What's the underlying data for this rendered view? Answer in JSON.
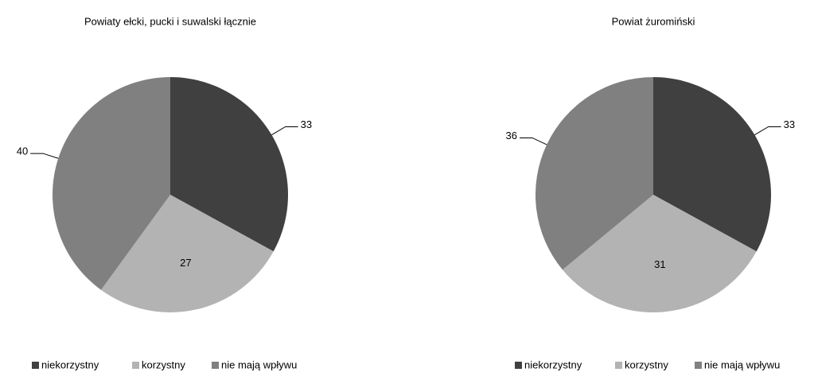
{
  "chart_data": [
    {
      "type": "pie",
      "title": "Powiaty ełcki, pucki i suwalski łącznie",
      "categories": [
        "niekorzystny",
        "korzystny",
        "nie mają wpływu"
      ],
      "values": [
        33,
        27,
        40
      ],
      "colors": [
        "#404040",
        "#b3b3b3",
        "#808080"
      ],
      "legend": "bottom"
    },
    {
      "type": "pie",
      "title": "Powiat żuromiński",
      "categories": [
        "niekorzystny",
        "korzystny",
        "nie mają wpływu"
      ],
      "values": [
        33,
        31,
        36
      ],
      "colors": [
        "#404040",
        "#b3b3b3",
        "#808080"
      ],
      "legend": "bottom"
    }
  ]
}
